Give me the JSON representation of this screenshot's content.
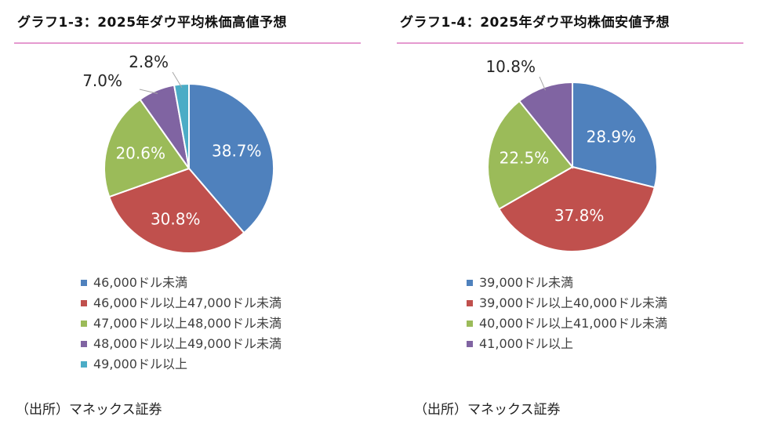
{
  "chart_data": [
    {
      "type": "pie",
      "title": "グラフ1-3：2025年ダウ平均株価高値予想",
      "slices": [
        {
          "label": "46,000ドル未満",
          "value": 38.7,
          "display": "38.7%",
          "color": "#4f81bd"
        },
        {
          "label": "46,000ドル以上47,000ドル未満",
          "value": 30.8,
          "display": "30.8%",
          "color": "#c0504d"
        },
        {
          "label": "47,000ドル以上48,000ドル未満",
          "value": 20.6,
          "display": "20.6%",
          "color": "#9bbb59"
        },
        {
          "label": "48,000ドル以上49,000ドル未満",
          "value": 7.0,
          "display": "7.0%",
          "color": "#8064a2"
        },
        {
          "label": "49,000ドル以上",
          "value": 2.8,
          "display": "2.8%",
          "color": "#4bacc6"
        }
      ],
      "source": "（出所）マネックス証券"
    },
    {
      "type": "pie",
      "title": "グラフ1-4：2025年ダウ平均株価安値予想",
      "slices": [
        {
          "label": "39,000ドル未満",
          "value": 28.9,
          "display": "28.9%",
          "color": "#4f81bd"
        },
        {
          "label": "39,000ドル以上40,000ドル未満",
          "value": 37.8,
          "display": "37.8%",
          "color": "#c0504d"
        },
        {
          "label": "40,000ドル以上41,000ドル未満",
          "value": 22.5,
          "display": "22.5%",
          "color": "#9bbb59"
        },
        {
          "label": "41,000ドル以上",
          "value": 10.8,
          "display": "10.8%",
          "color": "#8064a2"
        }
      ],
      "source": "（出所）マネックス証券"
    }
  ]
}
